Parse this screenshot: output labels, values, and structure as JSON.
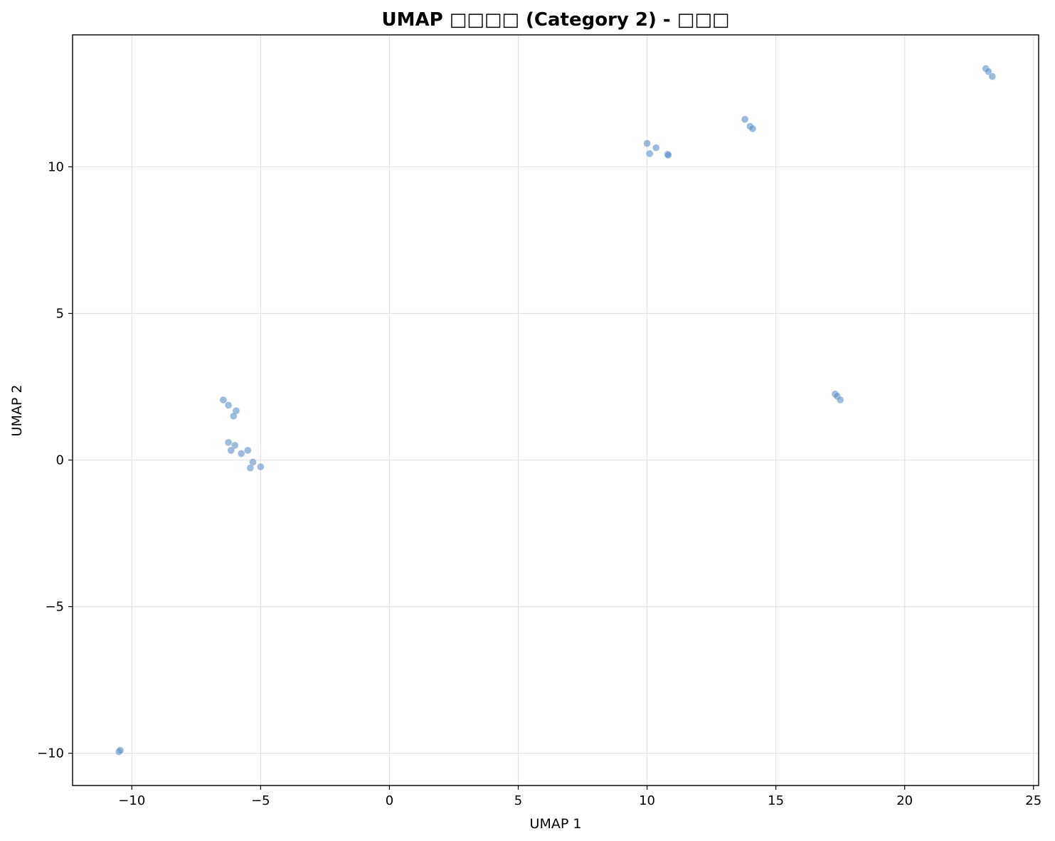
{
  "chart_data": {
    "type": "scatter",
    "title": "UMAP □□□□ (Category 2) - □□□",
    "xlabel": "UMAP 1",
    "ylabel": "UMAP 2",
    "xlim": [
      -12.3,
      25.2
    ],
    "ylim": [
      -11.1,
      14.5
    ],
    "xticks": [
      -10,
      -5,
      0,
      5,
      10,
      15,
      20,
      25
    ],
    "yticks": [
      -10,
      -5,
      0,
      5,
      10
    ],
    "xtick_labels": [
      "−10",
      "−5",
      "0",
      "5",
      "10",
      "15",
      "20",
      "25"
    ],
    "ytick_labels": [
      "−10",
      "−5",
      "0",
      "5",
      "10"
    ],
    "grid": true,
    "point_color": "#5b8ec4",
    "points": [
      {
        "x": -10.5,
        "y": -9.95
      },
      {
        "x": -10.45,
        "y": -9.9
      },
      {
        "x": -6.45,
        "y": 2.05
      },
      {
        "x": -6.25,
        "y": 1.87
      },
      {
        "x": -5.95,
        "y": 1.68
      },
      {
        "x": -6.05,
        "y": 1.5
      },
      {
        "x": -6.25,
        "y": 0.6
      },
      {
        "x": -6.0,
        "y": 0.5
      },
      {
        "x": -6.15,
        "y": 0.33
      },
      {
        "x": -5.5,
        "y": 0.33
      },
      {
        "x": -5.75,
        "y": 0.22
      },
      {
        "x": -5.3,
        "y": -0.07
      },
      {
        "x": -5.4,
        "y": -0.27
      },
      {
        "x": -5.0,
        "y": -0.23
      },
      {
        "x": 10.0,
        "y": 10.8
      },
      {
        "x": 10.35,
        "y": 10.65
      },
      {
        "x": 10.1,
        "y": 10.45
      },
      {
        "x": 10.8,
        "y": 10.43
      },
      {
        "x": 10.82,
        "y": 10.4
      },
      {
        "x": 13.8,
        "y": 11.62
      },
      {
        "x": 14.0,
        "y": 11.38
      },
      {
        "x": 14.1,
        "y": 11.3
      },
      {
        "x": 17.3,
        "y": 2.25
      },
      {
        "x": 17.38,
        "y": 2.18
      },
      {
        "x": 17.5,
        "y": 2.05
      },
      {
        "x": 23.15,
        "y": 13.35
      },
      {
        "x": 23.25,
        "y": 13.25
      },
      {
        "x": 23.4,
        "y": 13.08
      }
    ]
  }
}
